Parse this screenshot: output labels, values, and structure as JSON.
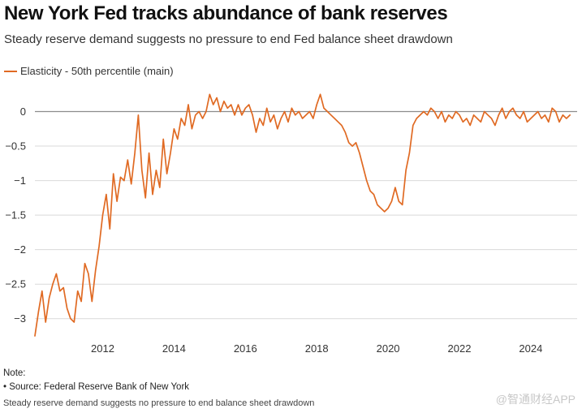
{
  "title": "New York Fed tracks abundance of bank reserves",
  "subtitle": "Steady reserve demand suggests no pressure to end Fed balance sheet drawdown",
  "colors": {
    "series": "#e06a23",
    "gridline": "#d9d9d9",
    "zeroline": "#8c8c8c",
    "text": "#333333"
  },
  "notes": {
    "label": "Note:",
    "source": "• Source: Federal Reserve Bank of New York",
    "caption": "Steady reserve demand suggests no pressure to end balance sheet drawdown"
  },
  "watermark": "@智通财经APP",
  "chart_data": {
    "type": "line",
    "title": "New York Fed tracks abundance of bank reserves",
    "subtitle": "Steady reserve demand suggests no pressure to end Fed balance sheet drawdown",
    "xlabel": "",
    "ylabel": "",
    "xlim": [
      2010.1,
      2025.3
    ],
    "ylim": [
      -3.25,
      0.3
    ],
    "grid": true,
    "legend_position": "top-left",
    "xticks": [
      2012,
      2014,
      2016,
      2018,
      2020,
      2022,
      2024
    ],
    "xtick_labels": [
      "2012",
      "2014",
      "2016",
      "2018",
      "2020",
      "2022",
      "2024"
    ],
    "yticks": [
      0,
      -0.5,
      -1,
      -1.5,
      -2,
      -2.5,
      -3
    ],
    "ytick_labels": [
      "0",
      "−0.5",
      "−1",
      "−1.5",
      "−2",
      "−2.5",
      "−3"
    ],
    "series": [
      {
        "name": "Elasticity - 50th percentile (main)",
        "x": [
          2010.1,
          2010.2,
          2010.3,
          2010.4,
          2010.5,
          2010.6,
          2010.7,
          2010.8,
          2010.9,
          2011.0,
          2011.1,
          2011.2,
          2011.3,
          2011.4,
          2011.5,
          2011.6,
          2011.7,
          2011.8,
          2011.9,
          2012.0,
          2012.1,
          2012.2,
          2012.3,
          2012.4,
          2012.5,
          2012.6,
          2012.7,
          2012.8,
          2012.9,
          2013.0,
          2013.1,
          2013.2,
          2013.3,
          2013.4,
          2013.5,
          2013.6,
          2013.7,
          2013.8,
          2013.9,
          2014.0,
          2014.1,
          2014.2,
          2014.3,
          2014.4,
          2014.5,
          2014.6,
          2014.7,
          2014.8,
          2014.9,
          2015.0,
          2015.1,
          2015.2,
          2015.3,
          2015.4,
          2015.5,
          2015.6,
          2015.7,
          2015.8,
          2015.9,
          2016.0,
          2016.1,
          2016.2,
          2016.3,
          2016.4,
          2016.5,
          2016.6,
          2016.7,
          2016.8,
          2016.9,
          2017.0,
          2017.1,
          2017.2,
          2017.3,
          2017.4,
          2017.5,
          2017.6,
          2017.7,
          2017.8,
          2017.9,
          2018.0,
          2018.1,
          2018.2,
          2018.3,
          2018.4,
          2018.5,
          2018.6,
          2018.7,
          2018.8,
          2018.9,
          2019.0,
          2019.1,
          2019.2,
          2019.3,
          2019.4,
          2019.5,
          2019.6,
          2019.7,
          2019.8,
          2019.9,
          2020.0,
          2020.1,
          2020.2,
          2020.3,
          2020.4,
          2020.5,
          2020.6,
          2020.7,
          2020.8,
          2020.9,
          2021.0,
          2021.1,
          2021.2,
          2021.3,
          2021.4,
          2021.5,
          2021.6,
          2021.7,
          2021.8,
          2021.9,
          2022.0,
          2022.1,
          2022.2,
          2022.3,
          2022.4,
          2022.5,
          2022.6,
          2022.7,
          2022.8,
          2022.9,
          2023.0,
          2023.1,
          2023.2,
          2023.3,
          2023.4,
          2023.5,
          2023.6,
          2023.7,
          2023.8,
          2023.9,
          2024.0,
          2024.1,
          2024.2,
          2024.3,
          2024.4,
          2024.5,
          2024.6,
          2024.7,
          2024.8,
          2024.9,
          2025.0,
          2025.1
        ],
        "values": [
          -3.25,
          -2.9,
          -2.6,
          -3.05,
          -2.7,
          -2.5,
          -2.35,
          -2.6,
          -2.55,
          -2.85,
          -3.0,
          -3.05,
          -2.6,
          -2.75,
          -2.2,
          -2.35,
          -2.75,
          -2.3,
          -1.95,
          -1.5,
          -1.2,
          -1.7,
          -0.9,
          -1.3,
          -0.95,
          -1.0,
          -0.7,
          -1.05,
          -0.6,
          -0.05,
          -0.85,
          -1.25,
          -0.6,
          -1.2,
          -0.85,
          -1.1,
          -0.4,
          -0.9,
          -0.6,
          -0.25,
          -0.4,
          -0.1,
          -0.2,
          0.1,
          -0.25,
          -0.05,
          0.0,
          -0.1,
          0.0,
          0.25,
          0.1,
          0.2,
          0.0,
          0.15,
          0.05,
          0.1,
          -0.05,
          0.1,
          -0.05,
          0.05,
          0.1,
          -0.05,
          -0.3,
          -0.1,
          -0.2,
          0.05,
          -0.15,
          -0.05,
          -0.25,
          -0.1,
          0.0,
          -0.15,
          0.05,
          -0.05,
          0.0,
          -0.1,
          -0.05,
          0.0,
          -0.1,
          0.1,
          0.25,
          0.05,
          0.0,
          -0.05,
          -0.1,
          -0.15,
          -0.2,
          -0.3,
          -0.45,
          -0.5,
          -0.45,
          -0.6,
          -0.8,
          -1.0,
          -1.15,
          -1.2,
          -1.35,
          -1.4,
          -1.45,
          -1.4,
          -1.3,
          -1.1,
          -1.3,
          -1.35,
          -0.85,
          -0.6,
          -0.2,
          -0.1,
          -0.05,
          0.0,
          -0.05,
          0.05,
          0.0,
          -0.1,
          0.0,
          -0.15,
          -0.05,
          -0.1,
          0.0,
          -0.05,
          -0.15,
          -0.1,
          -0.2,
          -0.05,
          -0.1,
          -0.15,
          0.0,
          -0.05,
          -0.1,
          -0.2,
          -0.05,
          0.05,
          -0.1,
          0.0,
          0.05,
          -0.05,
          -0.1,
          0.0,
          -0.15,
          -0.1,
          -0.05,
          0.0,
          -0.1,
          -0.05,
          -0.15,
          0.05,
          0.0,
          -0.15,
          -0.05,
          -0.1,
          -0.05
        ]
      }
    ]
  }
}
